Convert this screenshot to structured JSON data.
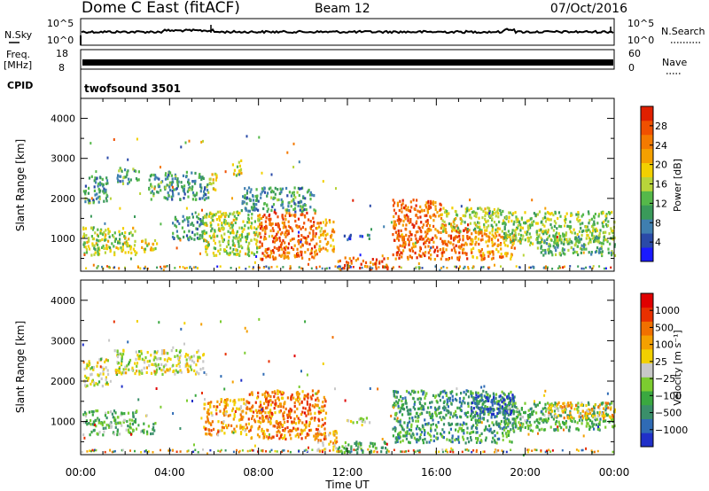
{
  "header": {
    "station": "Dome C East (fitACF)",
    "beam": "Beam 12",
    "date": "07/Oct/2016"
  },
  "top_panels": {
    "nsky": {
      "label": "N.Sky",
      "ticks": [
        "10^5",
        "10^0"
      ]
    },
    "nsearch": {
      "label": "N.Search",
      "ticks": [
        "10^5",
        "10^0"
      ]
    },
    "freq": {
      "label_line1": "Freq.",
      "label_line2": "[MHz]",
      "ticks": [
        "18",
        "8"
      ]
    },
    "nave": {
      "label": "Nave",
      "ticks": [
        "60",
        "0"
      ]
    },
    "cpid": {
      "label": "CPID",
      "value": "twofsound 3501"
    }
  },
  "chart_data": [
    {
      "type": "heatmap",
      "title": "",
      "xlabel": "Time UT",
      "ylabel": "Slant Range [km]",
      "x_ticks": [
        "00:00",
        "04:00",
        "08:00",
        "12:00",
        "16:00",
        "20:00",
        "00:00"
      ],
      "y_ticks": [
        1000,
        2000,
        3000,
        4000
      ],
      "xlim_hours": [
        0,
        24
      ],
      "ylim_km": [
        180,
        4500
      ],
      "colorbar": {
        "label": "Power [dB]",
        "ticks": [
          "4",
          "8",
          "12",
          "16",
          "20",
          "24",
          "28"
        ],
        "colors": [
          "#1a1aff",
          "#2a4aa8",
          "#3f7fb0",
          "#3a9a5a",
          "#55b84a",
          "#b8d43a",
          "#f2d000",
          "#f4a000",
          "#f47a00",
          "#f05000",
          "#e02000"
        ]
      },
      "regions": [
        {
          "t0": 0.05,
          "t1": 2.5,
          "r0": 600,
          "r1": 1300,
          "level": 0.5
        },
        {
          "t0": 0.1,
          "t1": 1.2,
          "r0": 1900,
          "r1": 2600,
          "level": 0.3
        },
        {
          "t0": 1.6,
          "t1": 2.6,
          "r0": 2400,
          "r1": 2800,
          "level": 0.3
        },
        {
          "t0": 2.7,
          "t1": 3.4,
          "r0": 700,
          "r1": 1000,
          "level": 0.6
        },
        {
          "t0": 3.0,
          "t1": 5.8,
          "r0": 2000,
          "r1": 2700,
          "level": 0.3
        },
        {
          "t0": 4.1,
          "t1": 5.5,
          "r0": 1000,
          "r1": 1600,
          "level": 0.25
        },
        {
          "t0": 5.7,
          "t1": 6.1,
          "r0": 2200,
          "r1": 2700,
          "level": 0.55
        },
        {
          "t0": 5.5,
          "t1": 8.0,
          "r0": 600,
          "r1": 1700,
          "level": 0.5
        },
        {
          "t0": 6.8,
          "t1": 7.2,
          "r0": 2600,
          "r1": 3000,
          "level": 0.55
        },
        {
          "t0": 7.2,
          "t1": 10.5,
          "r0": 1700,
          "r1": 2300,
          "level": 0.3
        },
        {
          "t0": 8.0,
          "t1": 10.6,
          "r0": 500,
          "r1": 1700,
          "level": 0.85
        },
        {
          "t0": 10.6,
          "t1": 11.4,
          "r0": 700,
          "r1": 1500,
          "level": 0.7
        },
        {
          "t0": 11.5,
          "t1": 13.8,
          "r0": 250,
          "r1": 550,
          "level": 0.85
        },
        {
          "t0": 11.8,
          "t1": 13.0,
          "r0": 1000,
          "r1": 1120,
          "level": 0.15
        },
        {
          "t0": 14.0,
          "t1": 16.2,
          "r0": 1400,
          "r1": 2000,
          "level": 0.85
        },
        {
          "t0": 14.0,
          "t1": 17.5,
          "r0": 500,
          "r1": 1400,
          "level": 0.85
        },
        {
          "t0": 16.2,
          "t1": 19.0,
          "r0": 1200,
          "r1": 1800,
          "level": 0.5
        },
        {
          "t0": 17.5,
          "t1": 19.5,
          "r0": 500,
          "r1": 1200,
          "level": 0.75
        },
        {
          "t0": 19.0,
          "t1": 24.0,
          "r0": 900,
          "r1": 1700,
          "level": 0.45
        },
        {
          "t0": 20.5,
          "t1": 24.0,
          "r0": 600,
          "r1": 1100,
          "level": 0.35
        }
      ]
    },
    {
      "type": "heatmap",
      "title": "",
      "xlabel": "Time UT",
      "ylabel": "Slant Range [km]",
      "x_ticks": [
        "00:00",
        "04:00",
        "08:00",
        "12:00",
        "16:00",
        "20:00",
        "00:00"
      ],
      "y_ticks": [
        1000,
        2000,
        3000,
        4000
      ],
      "xlim_hours": [
        0,
        24
      ],
      "ylim_km": [
        180,
        4500
      ],
      "colorbar": {
        "label": "Velocity [m s⁻¹]",
        "ticks": [
          "1000",
          "500",
          "100",
          "25",
          "−25",
          "−100",
          "−500",
          "−1000"
        ],
        "colors": [
          "#2030c8",
          "#2f6bb5",
          "#3a8f6a",
          "#3aa840",
          "#7ccc30",
          "#c8c8c8",
          "#f2d000",
          "#f4a000",
          "#f07000",
          "#e83000",
          "#e00000"
        ]
      },
      "regions": [
        {
          "t0": 0.05,
          "t1": 2.5,
          "r0": 700,
          "r1": 1300,
          "level": 0.35
        },
        {
          "t0": 0.1,
          "t1": 1.2,
          "r0": 1900,
          "r1": 2600,
          "level": 0.5
        },
        {
          "t0": 1.5,
          "t1": 5.5,
          "r0": 2200,
          "r1": 2800,
          "level": 0.5
        },
        {
          "t0": 2.6,
          "t1": 3.4,
          "r0": 700,
          "r1": 1000,
          "level": 0.35
        },
        {
          "t0": 5.5,
          "t1": 7.5,
          "r0": 700,
          "r1": 1600,
          "level": 0.7
        },
        {
          "t0": 7.5,
          "t1": 11.0,
          "r0": 600,
          "r1": 1800,
          "level": 0.78
        },
        {
          "t0": 10.5,
          "t1": 11.5,
          "r0": 300,
          "r1": 800,
          "level": 0.65
        },
        {
          "t0": 11.5,
          "t1": 13.8,
          "r0": 250,
          "r1": 550,
          "level": 0.32
        },
        {
          "t0": 11.8,
          "t1": 13.0,
          "r0": 1000,
          "r1": 1120,
          "level": 0.5
        },
        {
          "t0": 14.0,
          "t1": 19.5,
          "r0": 500,
          "r1": 1800,
          "level": 0.25
        },
        {
          "t0": 17.5,
          "t1": 19.5,
          "r0": 1200,
          "r1": 1700,
          "level": 0.05
        },
        {
          "t0": 19.0,
          "t1": 24.0,
          "r0": 800,
          "r1": 1500,
          "level": 0.3
        },
        {
          "t0": 21.0,
          "t1": 24.0,
          "r0": 1100,
          "r1": 1500,
          "level": 0.65
        }
      ]
    }
  ]
}
